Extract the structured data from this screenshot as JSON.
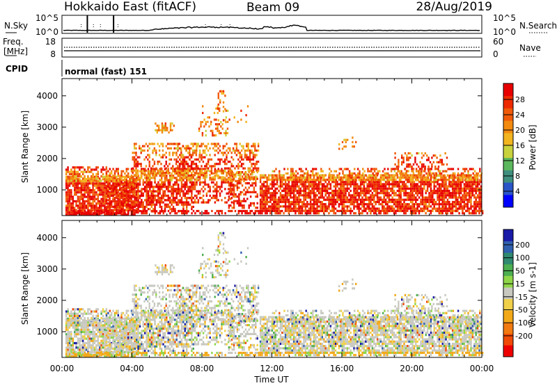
{
  "header": {
    "station": "Hokkaido East (fitACF)",
    "beam": "Beam 09",
    "date": "28/Aug/2019"
  },
  "strips": {
    "nsky_label": "N.Sky",
    "nsearch_label": "N.Search",
    "noise_ticks": [
      "10^5",
      "10^0"
    ],
    "freq_label_1": "Freq.",
    "freq_label_2": "[MHz]",
    "freq_ticks": [
      "18",
      "8"
    ],
    "nave_label": "Nave",
    "nave_ticks": [
      "60",
      "0"
    ],
    "cpid_label": "CPID",
    "cpid_value": "normal (fast) 151"
  },
  "chart_data": [
    {
      "type": "heatmap",
      "name": "power-panel",
      "ylabel": "Slant Range [km]",
      "yticks": [
        1000,
        2000,
        3000,
        4000
      ],
      "ylim": [
        180,
        4550
      ],
      "xlim_hours": [
        0,
        24
      ],
      "colorbar": {
        "label": "Power [dB]",
        "ticks": [
          "4",
          "8",
          "12",
          "16",
          "20",
          "24",
          "28"
        ],
        "colors": [
          "#0000ff",
          "#2a55c8",
          "#3f8f7e",
          "#5cb85c",
          "#c8d23c",
          "#f2b520",
          "#f28a10",
          "#f05a08",
          "#ee2a00",
          "#e80000"
        ]
      }
    },
    {
      "type": "heatmap",
      "name": "velocity-panel",
      "ylabel": "Slant Range [km]",
      "yticks": [
        1000,
        2000,
        3000,
        4000
      ],
      "ylim": [
        180,
        4550
      ],
      "xlim_hours": [
        0,
        24
      ],
      "xticks": [
        "00:00",
        "04:00",
        "08:00",
        "12:00",
        "16:00",
        "20:00",
        "00:00"
      ],
      "xlabel": "Time UT",
      "colorbar": {
        "label": "Velocity [m s-1]",
        "ticks": [
          "200",
          "100",
          "50",
          "15",
          "-15",
          "-50",
          "-100",
          "-200"
        ],
        "colors": [
          "#1a1aa8",
          "#2f5fae",
          "#2f8a70",
          "#4caf50",
          "#8fd648",
          "#c8c8c0",
          "#f0d048",
          "#f2a818",
          "#f27a10",
          "#f04a08",
          "#ee0000"
        ]
      }
    }
  ]
}
